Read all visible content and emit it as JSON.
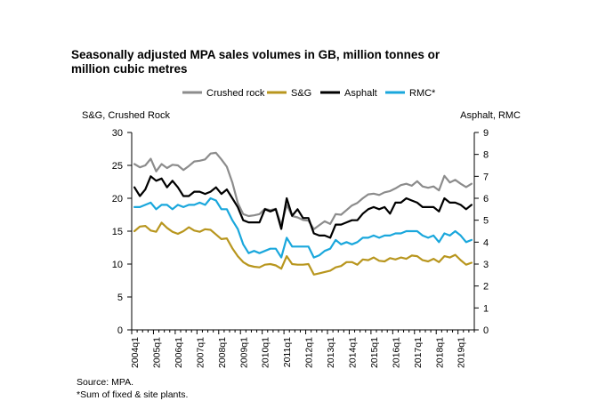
{
  "header": {
    "title": "Seasonally adjusted MPA sales volumes in GB, million tonnes or million cubic metres"
  },
  "footer": {
    "source": "Source: MPA.",
    "footnote": "*Sum of fixed & site plants."
  },
  "chart_data": {
    "type": "line",
    "title": "Seasonally adjusted MPA sales volumes in GB, million tonnes or million cubic metres",
    "ylabel_left": "S&G, Crushed Rock",
    "ylabel_right": "Asphalt, RMC",
    "ylim_left": [
      0,
      30
    ],
    "yticks_left": [
      "0",
      "5",
      "10",
      "15",
      "20",
      "25",
      "30"
    ],
    "ylim_right": [
      0,
      9
    ],
    "yticks_right": [
      "0",
      "1",
      "2",
      "3",
      "4",
      "5",
      "6",
      "7",
      "8",
      "9"
    ],
    "x_tick_labels": [
      "2004q1",
      "2005q1",
      "2006q1",
      "2007q1",
      "2008q1",
      "2009q1",
      "2010q1",
      "2011q1",
      "2012q1",
      "2013q1",
      "2014q1",
      "2015q1",
      "2016q1",
      "2017q1",
      "2018q1",
      "2019q1"
    ],
    "x_start_year": 2004,
    "quarters": 63,
    "legend_position": "top",
    "series": [
      {
        "name": "Crushed rock",
        "axis": "left",
        "color": "#8c8c8c",
        "values": [
          25.2,
          24.7,
          25.0,
          26.0,
          24.1,
          25.2,
          24.6,
          25.1,
          25.0,
          24.3,
          24.9,
          25.6,
          25.7,
          25.9,
          26.8,
          26.9,
          25.9,
          24.8,
          22.4,
          19.3,
          17.6,
          17.3,
          17.4,
          17.6,
          18.4,
          18.2,
          18.4,
          15.9,
          19.0,
          17.3,
          17.1,
          16.7,
          16.6,
          15.3,
          15.9,
          16.5,
          16.1,
          17.6,
          17.5,
          18.2,
          18.9,
          19.3,
          20.0,
          20.6,
          20.7,
          20.5,
          20.9,
          21.1,
          21.5,
          22.0,
          22.2,
          21.9,
          22.6,
          21.8,
          21.6,
          21.8,
          21.2,
          23.4,
          22.4,
          22.8,
          22.2,
          21.7,
          22.2
        ]
      },
      {
        "name": "S&G",
        "axis": "left",
        "color": "#b8961e",
        "values": [
          15.0,
          15.7,
          15.8,
          15.1,
          14.9,
          16.3,
          15.5,
          14.9,
          14.6,
          15.0,
          15.6,
          15.1,
          14.9,
          15.3,
          15.2,
          14.5,
          13.8,
          13.9,
          12.4,
          11.2,
          10.3,
          9.8,
          9.6,
          9.5,
          9.9,
          10.0,
          9.8,
          9.3,
          11.2,
          10.0,
          9.9,
          9.9,
          10.0,
          8.4,
          8.6,
          8.8,
          9.0,
          9.5,
          9.7,
          10.3,
          10.3,
          9.9,
          10.7,
          10.6,
          11.0,
          10.5,
          10.4,
          10.9,
          10.7,
          11.0,
          10.8,
          11.3,
          11.2,
          10.6,
          10.4,
          10.8,
          10.3,
          11.2,
          11.0,
          11.4,
          10.6,
          9.9,
          10.2
        ]
      },
      {
        "name": "Asphalt",
        "axis": "right",
        "color": "#000000",
        "values": [
          6.5,
          6.1,
          6.4,
          7.0,
          6.8,
          6.9,
          6.5,
          6.8,
          6.5,
          6.1,
          6.1,
          6.3,
          6.3,
          6.2,
          6.3,
          6.5,
          6.2,
          6.4,
          6.0,
          5.6,
          5.0,
          4.9,
          4.9,
          4.9,
          5.5,
          5.4,
          5.5,
          4.6,
          6.0,
          5.2,
          5.5,
          5.1,
          5.1,
          4.4,
          4.3,
          4.3,
          4.2,
          4.8,
          4.8,
          4.9,
          5.0,
          5.0,
          5.3,
          5.5,
          5.6,
          5.5,
          5.6,
          5.3,
          5.8,
          5.8,
          6.0,
          5.9,
          5.8,
          5.6,
          5.6,
          5.6,
          5.4,
          6.0,
          5.8,
          5.8,
          5.7,
          5.5,
          5.7
        ]
      },
      {
        "name": "RMC*",
        "axis": "right",
        "color": "#1aa7dc",
        "values": [
          5.6,
          5.6,
          5.7,
          5.8,
          5.5,
          5.7,
          5.7,
          5.5,
          5.7,
          5.6,
          5.7,
          5.7,
          5.8,
          5.7,
          6.0,
          5.9,
          5.5,
          5.5,
          5.0,
          4.6,
          3.9,
          3.5,
          3.6,
          3.5,
          3.6,
          3.7,
          3.7,
          3.3,
          4.2,
          3.8,
          3.8,
          3.8,
          3.8,
          3.3,
          3.4,
          3.6,
          3.7,
          4.1,
          3.9,
          4.0,
          3.9,
          4.0,
          4.2,
          4.2,
          4.3,
          4.2,
          4.3,
          4.3,
          4.4,
          4.4,
          4.5,
          4.5,
          4.5,
          4.3,
          4.2,
          4.3,
          4.0,
          4.4,
          4.3,
          4.5,
          4.3,
          4.0,
          4.1
        ]
      }
    ]
  }
}
